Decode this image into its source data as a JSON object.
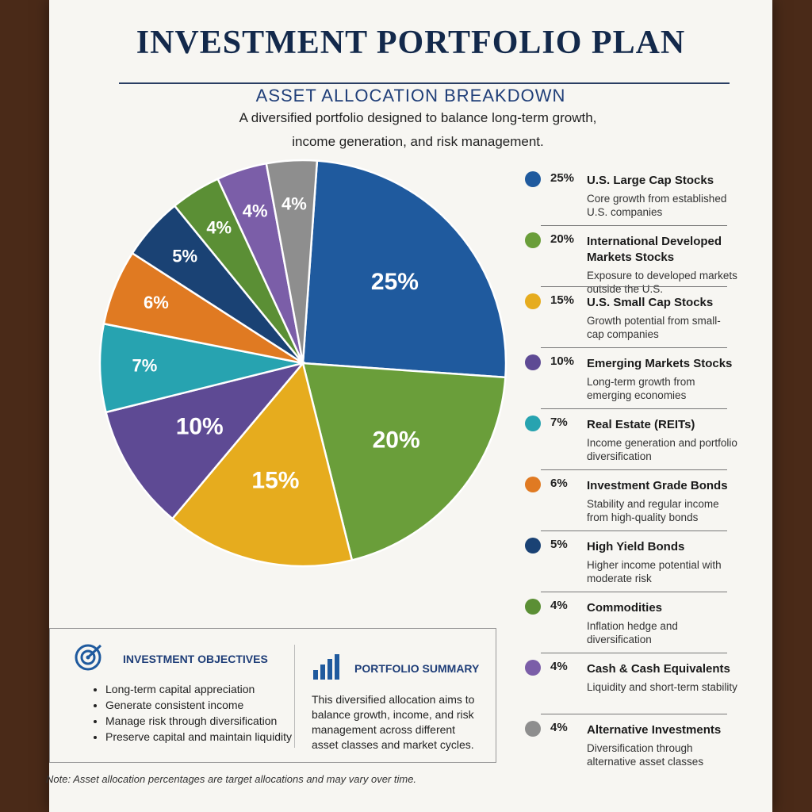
{
  "header": {
    "title": "INVESTMENT PORTFOLIO PLAN",
    "subtitle": "ASSET ALLOCATION BREAKDOWN",
    "description": "A diversified portfolio designed to balance long-term growth, income generation, and risk management."
  },
  "chart_data": {
    "type": "pie",
    "categories": [
      "U.S. Large Cap Stocks",
      "International Developed Markets Stocks",
      "U.S. Small Cap Stocks",
      "Emerging Markets Stocks",
      "Real Estate (REITs)",
      "Investment Grade Bonds",
      "High Yield Bonds",
      "Commodities",
      "Cash & Cash Equivalents",
      "Alternative Investments"
    ],
    "values": [
      25,
      20,
      15,
      10,
      7,
      6,
      5,
      4,
      4,
      4
    ],
    "value_labels": [
      "25%",
      "20%",
      "15%",
      "10%",
      "7%",
      "6%",
      "5%",
      "4%",
      "4%",
      "4%"
    ],
    "colors": [
      "#1f5a9e",
      "#6a9e3a",
      "#e6ac1e",
      "#5e4a94",
      "#27a3b0",
      "#e07a22",
      "#1a4274",
      "#5b8f35",
      "#7b5ea8",
      "#8e8e8e"
    ],
    "descriptions": [
      "Core growth from established U.S. companies",
      "Exposure to developed markets outside the U.S.",
      "Growth potential from small-cap companies",
      "Long-term growth from emerging economies",
      "Income generation and portfolio diversification",
      "Stability and regular income from high-quality bonds",
      "Higher income potential with moderate risk",
      "Inflation hedge and diversification",
      "Liquidity and short-term stability",
      "Diversification through alternative asset classes"
    ]
  },
  "objectives": {
    "title": "INVESTMENT OBJECTIVES",
    "items": [
      "Long-term capital appreciation",
      "Generate consistent income",
      "Manage risk through diversification",
      "Preserve capital and maintain liquidity"
    ]
  },
  "summary": {
    "title": "PORTFOLIO SUMMARY",
    "text": "This diversified allocation aims to balance growth, income, and risk management across different asset classes and market cycles."
  },
  "note": "Note: Asset allocation percentages are target allocations and may vary over time."
}
